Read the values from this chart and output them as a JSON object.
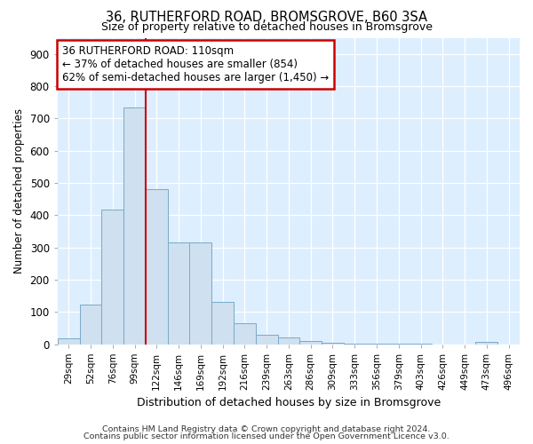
{
  "title": "36, RUTHERFORD ROAD, BROMSGROVE, B60 3SA",
  "subtitle": "Size of property relative to detached houses in Bromsgrove",
  "xlabel": "Distribution of detached houses by size in Bromsgrove",
  "ylabel": "Number of detached properties",
  "bar_color": "#cfe0f0",
  "bar_edge_color": "#7aaac8",
  "vline_x": 4,
  "vline_color": "#cc0000",
  "annotation_text": "36 RUTHERFORD ROAD: 110sqm\n← 37% of detached houses are smaller (854)\n62% of semi-detached houses are larger (1,450) →",
  "annotation_box_color": "white",
  "annotation_box_edge_color": "#cc0000",
  "categories": [
    "29sqm",
    "52sqm",
    "76sqm",
    "99sqm",
    "122sqm",
    "146sqm",
    "169sqm",
    "192sqm",
    "216sqm",
    "239sqm",
    "263sqm",
    "286sqm",
    "309sqm",
    "333sqm",
    "356sqm",
    "379sqm",
    "403sqm",
    "426sqm",
    "449sqm",
    "473sqm",
    "496sqm"
  ],
  "values": [
    18,
    122,
    418,
    733,
    480,
    315,
    315,
    130,
    65,
    28,
    20,
    10,
    5,
    2,
    2,
    1,
    1,
    0,
    0,
    8,
    0
  ],
  "ylim": [
    0,
    950
  ],
  "yticks": [
    0,
    100,
    200,
    300,
    400,
    500,
    600,
    700,
    800,
    900
  ],
  "footer1": "Contains HM Land Registry data © Crown copyright and database right 2024.",
  "footer2": "Contains public sector information licensed under the Open Government Licence v3.0.",
  "background_color": "#ffffff",
  "plot_background_color": "#ddeeff"
}
